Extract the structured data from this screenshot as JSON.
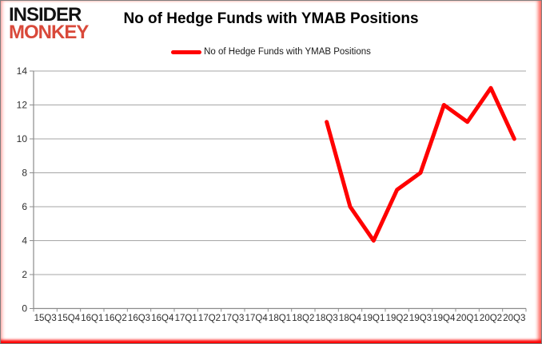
{
  "branding": {
    "logo_line1": "INSIDER",
    "logo_line2": "MONKEY",
    "logo_color_primary": "#121212",
    "logo_color_secondary": "#d9493a"
  },
  "header": {
    "title": "No of Hedge Funds with YMAB Positions"
  },
  "legend": {
    "label": "No of Hedge Funds with YMAB Positions",
    "line_color": "#ff0000"
  },
  "chart_data": {
    "type": "line",
    "title": "No of Hedge Funds with YMAB Positions",
    "xlabel": "",
    "ylabel": "",
    "categories": [
      "15Q3",
      "15Q4",
      "16Q1",
      "16Q2",
      "16Q3",
      "16Q4",
      "17Q1",
      "17Q2",
      "17Q3",
      "17Q4",
      "18Q1",
      "18Q2",
      "18Q3",
      "18Q4",
      "19Q1",
      "19Q2",
      "19Q3",
      "19Q4",
      "20Q1",
      "20Q2",
      "20Q3"
    ],
    "series": [
      {
        "name": "No of Hedge Funds with YMAB Positions",
        "color": "#ff0000",
        "values": [
          null,
          null,
          null,
          null,
          null,
          null,
          null,
          null,
          null,
          null,
          null,
          null,
          11,
          6,
          4,
          7,
          8,
          12,
          11,
          13,
          10
        ]
      }
    ],
    "ylim": [
      0,
      14
    ],
    "ytick_interval": 2,
    "grid": "horizontal",
    "legend_position": "top",
    "gridline_color": "#a6a6a6",
    "axis_color": "#8c8c8c",
    "tick_label_color": "#2e2e2e"
  }
}
